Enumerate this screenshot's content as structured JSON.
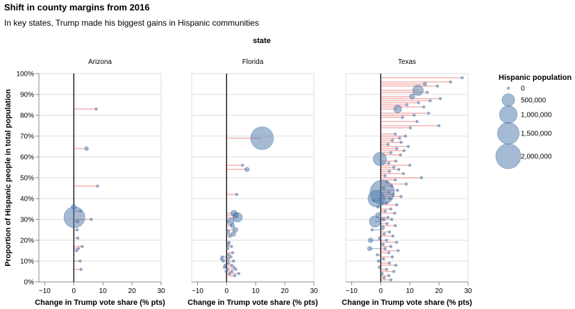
{
  "title": "Shift in county margins from 2016",
  "subtitle": "In key states, Trump made his biggest gains in Hispanic communities",
  "chart_data": {
    "type": "scatter",
    "facet_title": "state",
    "xlabel": "Change in Trump vote share (% pts)",
    "ylabel": "Proportion of Hispanic people in total population",
    "xlim": [
      -12,
      30
    ],
    "ylim": [
      0,
      100
    ],
    "x_ticks": [
      "−10",
      "0",
      "10",
      "20",
      "30"
    ],
    "y_ticks": [
      "0%",
      "10%",
      "20%",
      "30%",
      "40%",
      "50%",
      "60%",
      "70%",
      "80%",
      "90%",
      "100%"
    ],
    "grid": true,
    "legend_title": "Hispanic population",
    "legend_labels": [
      "0",
      "500,000",
      "1,000,000",
      "1,500,000",
      "2,000,000"
    ],
    "legend_values": [
      0,
      500000,
      1000000,
      1500000,
      2000000
    ],
    "legend_placement": "right",
    "colors": {
      "point": "#4c78a8",
      "gain_line": "#e45756",
      "loss_line": "#4c78a8",
      "zero_line": "#000000",
      "grid": "#dddddd"
    },
    "facets": [
      {
        "name": "Arizona",
        "points": [
          {
            "x": 7.7,
            "y": 83,
            "pop": 12000
          },
          {
            "x": 4.4,
            "y": 64,
            "pop": 45000
          },
          {
            "x": 8.2,
            "y": 46,
            "pop": 5000
          },
          {
            "x": 0.0,
            "y": 36,
            "pop": 80000
          },
          {
            "x": 2.3,
            "y": 34,
            "pop": 14000
          },
          {
            "x": 0.2,
            "y": 31,
            "pop": 1400000
          },
          {
            "x": 6.0,
            "y": 30,
            "pop": 10000
          },
          {
            "x": 1.3,
            "y": 29,
            "pop": 30000
          },
          {
            "x": 1.2,
            "y": 25,
            "pop": 6000
          },
          {
            "x": 1.4,
            "y": 21,
            "pop": 8000
          },
          {
            "x": 2.9,
            "y": 17,
            "pop": 5000
          },
          {
            "x": 1.6,
            "y": 16,
            "pop": 12000
          },
          {
            "x": 1.0,
            "y": 15,
            "pop": 3000
          },
          {
            "x": 2.2,
            "y": 10,
            "pop": 6000
          },
          {
            "x": 2.5,
            "y": 6,
            "pop": 4000
          }
        ]
      },
      {
        "name": "Florida",
        "points": [
          {
            "x": 12.2,
            "y": 69,
            "pop": 1650000
          },
          {
            "x": 5.5,
            "y": 56,
            "pop": 10000
          },
          {
            "x": 7.0,
            "y": 54,
            "pop": 60000
          },
          {
            "x": 3.5,
            "y": 42,
            "pop": 8000
          },
          {
            "x": 2.5,
            "y": 33,
            "pop": 120000
          },
          {
            "x": 3.2,
            "y": 32,
            "pop": 100000
          },
          {
            "x": 3.8,
            "y": 31,
            "pop": 280000
          },
          {
            "x": 1.4,
            "y": 29,
            "pop": 150000
          },
          {
            "x": 2.0,
            "y": 27,
            "pop": 60000
          },
          {
            "x": 3.0,
            "y": 25,
            "pop": 80000
          },
          {
            "x": 0.5,
            "y": 24,
            "pop": 40000
          },
          {
            "x": 2.3,
            "y": 23,
            "pop": 70000
          },
          {
            "x": 1.2,
            "y": 22,
            "pop": 30000
          },
          {
            "x": 0.9,
            "y": 19,
            "pop": 20000
          },
          {
            "x": 0.6,
            "y": 18,
            "pop": 25000
          },
          {
            "x": 1.7,
            "y": 17,
            "pop": 15000
          },
          {
            "x": 0.4,
            "y": 16,
            "pop": 10000
          },
          {
            "x": 2.1,
            "y": 14,
            "pop": 8000
          },
          {
            "x": 0.8,
            "y": 13,
            "pop": 12000
          },
          {
            "x": -1.5,
            "y": 12,
            "pop": 5000
          },
          {
            "x": 1.5,
            "y": 12,
            "pop": 10000
          },
          {
            "x": -1.8,
            "y": 11,
            "pop": 4000
          },
          {
            "x": 0.5,
            "y": 11,
            "pop": 30000
          },
          {
            "x": 2.4,
            "y": 10,
            "pop": 6000
          },
          {
            "x": -1.2,
            "y": 10,
            "pop": 3000
          },
          {
            "x": 0.7,
            "y": 9,
            "pop": 8000
          },
          {
            "x": -0.5,
            "y": 8,
            "pop": 5000
          },
          {
            "x": 1.8,
            "y": 8,
            "pop": 4000
          },
          {
            "x": 2.6,
            "y": 7,
            "pop": 3000
          },
          {
            "x": -0.8,
            "y": 7,
            "pop": 2000
          },
          {
            "x": 0.3,
            "y": 6,
            "pop": 6000
          },
          {
            "x": 3.2,
            "y": 6,
            "pop": 2000
          },
          {
            "x": 1.9,
            "y": 5,
            "pop": 3000
          },
          {
            "x": -0.2,
            "y": 5,
            "pop": 2000
          },
          {
            "x": 4.2,
            "y": 4,
            "pop": 1500
          },
          {
            "x": 1.1,
            "y": 4,
            "pop": 2500
          },
          {
            "x": 2.8,
            "y": 3,
            "pop": 1500
          }
        ]
      },
      {
        "name": "Texas",
        "points": [
          {
            "x": 28.0,
            "y": 98,
            "pop": 4000
          },
          {
            "x": 24.0,
            "y": 96,
            "pop": 6000
          },
          {
            "x": 15.2,
            "y": 95,
            "pop": 40000
          },
          {
            "x": 19.5,
            "y": 94,
            "pop": 5000
          },
          {
            "x": 12.8,
            "y": 92,
            "pop": 350000
          },
          {
            "x": 16.0,
            "y": 91,
            "pop": 8000
          },
          {
            "x": 10.8,
            "y": 89,
            "pop": 90000
          },
          {
            "x": 20.5,
            "y": 88,
            "pop": 3000
          },
          {
            "x": 17.0,
            "y": 87,
            "pop": 6000
          },
          {
            "x": 13.0,
            "y": 86,
            "pop": 4000
          },
          {
            "x": 9.0,
            "y": 85,
            "pop": 7000
          },
          {
            "x": 14.8,
            "y": 84,
            "pop": 3000
          },
          {
            "x": 5.8,
            "y": 83,
            "pop": 190000
          },
          {
            "x": 16.5,
            "y": 81,
            "pop": 4000
          },
          {
            "x": 11.5,
            "y": 80,
            "pop": 5000
          },
          {
            "x": 7.5,
            "y": 79,
            "pop": 3000
          },
          {
            "x": 12.5,
            "y": 77,
            "pop": 4000
          },
          {
            "x": 20.0,
            "y": 75,
            "pop": 3000
          },
          {
            "x": 10.2,
            "y": 74,
            "pop": 3000
          },
          {
            "x": 5.0,
            "y": 71,
            "pop": 6000
          },
          {
            "x": 8.5,
            "y": 70,
            "pop": 3000
          },
          {
            "x": 6.5,
            "y": 69,
            "pop": 4000
          },
          {
            "x": 4.0,
            "y": 68,
            "pop": 5000
          },
          {
            "x": 7.0,
            "y": 67,
            "pop": 3000
          },
          {
            "x": 2.5,
            "y": 66,
            "pop": 4000
          },
          {
            "x": 9.5,
            "y": 65,
            "pop": 3000
          },
          {
            "x": 5.5,
            "y": 64,
            "pop": 5000
          },
          {
            "x": 8.0,
            "y": 63,
            "pop": 3000
          },
          {
            "x": 3.5,
            "y": 62,
            "pop": 6000
          },
          {
            "x": 6.8,
            "y": 61,
            "pop": 3000
          },
          {
            "x": -0.3,
            "y": 59,
            "pop": 560000
          },
          {
            "x": 5.2,
            "y": 58,
            "pop": 4000
          },
          {
            "x": 2.8,
            "y": 57,
            "pop": 5000
          },
          {
            "x": 10.0,
            "y": 56,
            "pop": 3000
          },
          {
            "x": 4.5,
            "y": 55,
            "pop": 4000
          },
          {
            "x": 6.2,
            "y": 54,
            "pop": 3000
          },
          {
            "x": 3.0,
            "y": 53,
            "pop": 5000
          },
          {
            "x": 7.8,
            "y": 52,
            "pop": 3000
          },
          {
            "x": 1.5,
            "y": 51,
            "pop": 6000
          },
          {
            "x": 14.0,
            "y": 50,
            "pop": 3000
          },
          {
            "x": 5.0,
            "y": 49,
            "pop": 4000
          },
          {
            "x": 2.2,
            "y": 48,
            "pop": 5000
          },
          {
            "x": 8.8,
            "y": 47,
            "pop": 3000
          },
          {
            "x": 3.8,
            "y": 46,
            "pop": 4000
          },
          {
            "x": 1.0,
            "y": 45,
            "pop": 30000
          },
          {
            "x": 5.8,
            "y": 44,
            "pop": 3000
          },
          {
            "x": 2.8,
            "y": 43,
            "pop": 5000
          },
          {
            "x": 0.5,
            "y": 43,
            "pop": 1900000
          },
          {
            "x": 4.2,
            "y": 42,
            "pop": 4000
          },
          {
            "x": 7.0,
            "y": 41,
            "pop": 3000
          },
          {
            "x": -1.5,
            "y": 40,
            "pop": 900000
          },
          {
            "x": 3.2,
            "y": 40,
            "pop": 5000
          },
          {
            "x": -2.5,
            "y": 39,
            "pop": 10000
          },
          {
            "x": 2.0,
            "y": 38,
            "pop": 4000
          },
          {
            "x": 5.5,
            "y": 37,
            "pop": 3000
          },
          {
            "x": -1.0,
            "y": 36,
            "pop": 20000
          },
          {
            "x": 3.5,
            "y": 35,
            "pop": 4000
          },
          {
            "x": 1.5,
            "y": 34,
            "pop": 6000
          },
          {
            "x": 4.8,
            "y": 33,
            "pop": 3000
          },
          {
            "x": -0.8,
            "y": 32,
            "pop": 100000
          },
          {
            "x": 2.5,
            "y": 31,
            "pop": 5000
          },
          {
            "x": 1.0,
            "y": 30,
            "pop": 40000
          },
          {
            "x": 3.8,
            "y": 30,
            "pop": 3000
          },
          {
            "x": -2.0,
            "y": 29,
            "pop": 400000
          },
          {
            "x": 2.2,
            "y": 28,
            "pop": 8000
          },
          {
            "x": 5.0,
            "y": 27,
            "pop": 3000
          },
          {
            "x": 0.5,
            "y": 26,
            "pop": 60000
          },
          {
            "x": -3.0,
            "y": 25,
            "pop": 6000
          },
          {
            "x": 3.0,
            "y": 24,
            "pop": 4000
          },
          {
            "x": 1.2,
            "y": 23,
            "pop": 20000
          },
          {
            "x": 4.2,
            "y": 22,
            "pop": 3000
          },
          {
            "x": -0.5,
            "y": 21,
            "pop": 10000
          },
          {
            "x": -3.5,
            "y": 20,
            "pop": 70000
          },
          {
            "x": 2.0,
            "y": 20,
            "pop": 5000
          },
          {
            "x": 5.5,
            "y": 19,
            "pop": 3000
          },
          {
            "x": 0.8,
            "y": 18,
            "pop": 8000
          },
          {
            "x": 3.5,
            "y": 17,
            "pop": 4000
          },
          {
            "x": -3.8,
            "y": 16,
            "pop": 60000
          },
          {
            "x": 1.5,
            "y": 16,
            "pop": 6000
          },
          {
            "x": 6.0,
            "y": 15,
            "pop": 3000
          },
          {
            "x": 2.8,
            "y": 14,
            "pop": 4000
          },
          {
            "x": -1.2,
            "y": 13,
            "pop": 5000
          },
          {
            "x": 4.0,
            "y": 12,
            "pop": 3000
          },
          {
            "x": 1.0,
            "y": 11,
            "pop": 6000
          },
          {
            "x": -0.8,
            "y": 10,
            "pop": 4000
          },
          {
            "x": 3.0,
            "y": 9,
            "pop": 3000
          },
          {
            "x": 5.2,
            "y": 8,
            "pop": 2000
          },
          {
            "x": -0.5,
            "y": 7,
            "pop": 4000
          },
          {
            "x": 2.0,
            "y": 6,
            "pop": 3000
          },
          {
            "x": 4.5,
            "y": 5,
            "pop": 2000
          },
          {
            "x": 0.5,
            "y": 4,
            "pop": 3000
          },
          {
            "x": 2.8,
            "y": 3,
            "pop": 2000
          },
          {
            "x": 1.2,
            "y": 2,
            "pop": 2000
          },
          {
            "x": 3.5,
            "y": 1,
            "pop": 1500
          }
        ]
      }
    ]
  }
}
